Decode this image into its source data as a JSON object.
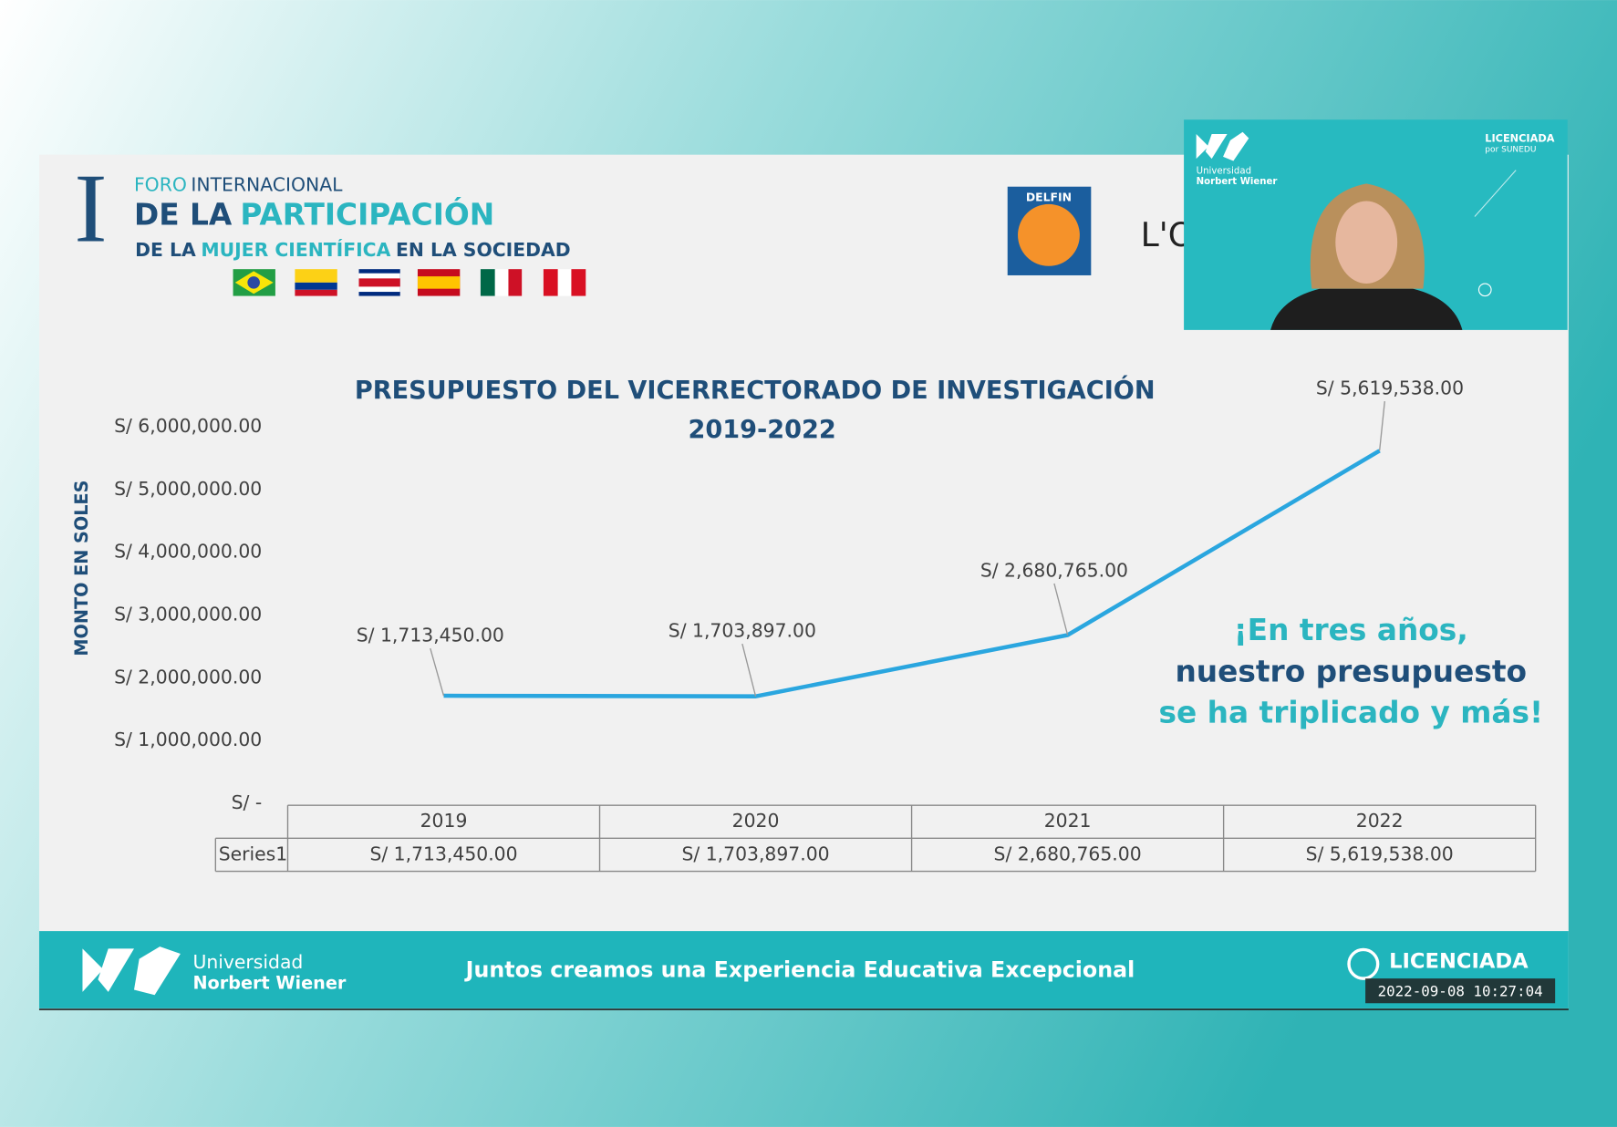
{
  "chart_data": {
    "type": "line",
    "title": "PRESUPUESTO DEL VICERRECTORADO DE INVESTIGACIÓN",
    "subtitle": "2019-2022",
    "y_label": "MONTO EN SOLES",
    "categories": [
      "2019",
      "2020",
      "2021",
      "2022"
    ],
    "series": [
      {
        "name": "Series1",
        "color": "#2aa6df",
        "values": [
          1713450,
          1703897,
          2680765,
          5619538
        ],
        "value_labels": [
          "S/ 1,713,450.00",
          "S/ 1,703,897.00",
          "S/ 2,680,765.00",
          "S/ 5,619,538.00"
        ]
      }
    ],
    "ylim": [
      0,
      6000000
    ],
    "yticks": [
      {
        "value": 0,
        "label": "S/ -"
      },
      {
        "value": 1000000,
        "label": "S/ 1,000,000.00"
      },
      {
        "value": 2000000,
        "label": "S/ 2,000,000.00"
      },
      {
        "value": 3000000,
        "label": "S/ 3,000,000.00"
      },
      {
        "value": 4000000,
        "label": "S/ 4,000,000.00"
      },
      {
        "value": 5000000,
        "label": "S/ 5,000,000.00"
      },
      {
        "value": 6000000,
        "label": "S/ 6,000,000.00"
      }
    ],
    "grid": false,
    "data_table": true,
    "annotations": [
      "¡En tres años,",
      "nuestro presupuesto",
      "se ha triplicado y más!"
    ]
  },
  "header": {
    "numeral": "I",
    "line1": [
      "FORO",
      "INTERNACIONAL"
    ],
    "line2": [
      "DE LA",
      "PARTICIPACIÓN"
    ],
    "line3": [
      "DE LA",
      "MUJER CIENTÍFICA",
      "EN LA SOCIEDAD"
    ]
  },
  "logos": {
    "delfin": "DELFIN",
    "partner": "L'O"
  },
  "webcam": {
    "university": [
      "Universidad",
      "Norbert Wiener"
    ],
    "license": [
      "LICENCIADA",
      "por SUNEDU"
    ]
  },
  "footer": {
    "university": [
      "Universidad",
      "Norbert Wiener"
    ],
    "slogan": "Juntos creamos una Experiencia Educativa Excepcional",
    "license": "LICENCIADA",
    "timestamp": "2022-09-08  10:27:04"
  }
}
